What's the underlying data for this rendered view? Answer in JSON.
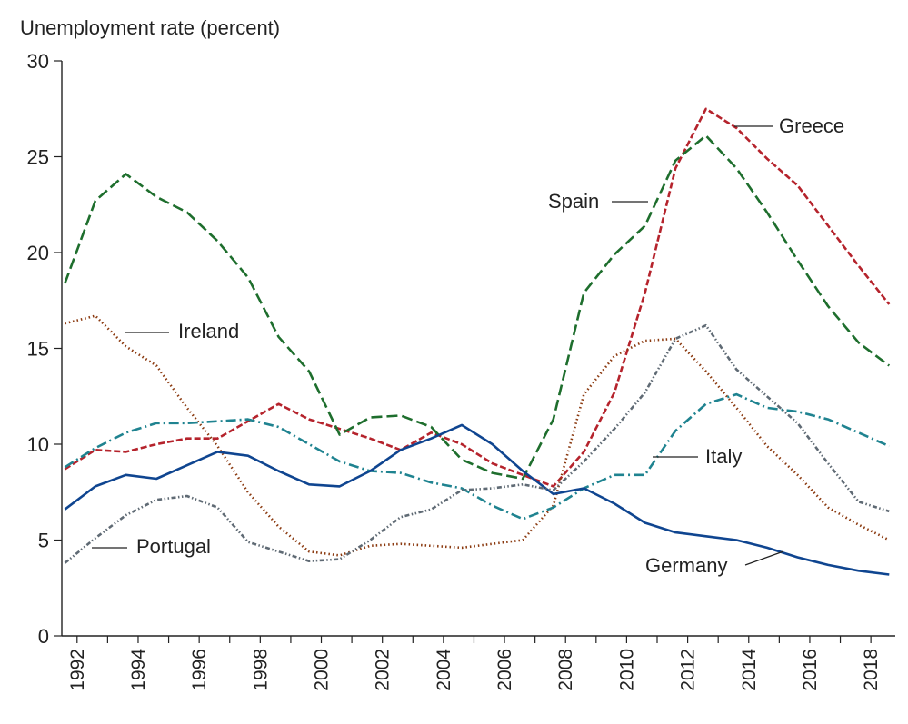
{
  "chart_data": {
    "type": "line",
    "title": "",
    "ylabel": "Unemployment rate (percent)",
    "xlabel": "",
    "ylim": [
      0,
      30
    ],
    "xlim": [
      1991.5,
      2018.8
    ],
    "yticks": [
      0,
      5,
      10,
      15,
      20,
      25,
      30
    ],
    "xticks": [
      1992,
      1994,
      1996,
      1998,
      2000,
      2002,
      2004,
      2006,
      2008,
      2010,
      2012,
      2014,
      2016,
      2018
    ],
    "grid": false,
    "legend": "direct labels",
    "x": [
      1991.6,
      1992.6,
      1993.6,
      1994.6,
      1995.6,
      1996.6,
      1997.6,
      1998.6,
      1999.6,
      2000.6,
      2001.6,
      2002.6,
      2003.6,
      2004.6,
      2005.6,
      2006.6,
      2007.6,
      2008.6,
      2009.6,
      2010.6,
      2011.6,
      2012.6,
      2013.6,
      2014.6,
      2015.6,
      2016.6,
      2017.6,
      2018.6
    ],
    "series": [
      {
        "name": "Greece",
        "color": "#b5232c",
        "dash": "7,3",
        "values": [
          8.7,
          9.7,
          9.6,
          10.0,
          10.3,
          10.3,
          11.2,
          12.1,
          11.3,
          10.8,
          10.3,
          9.7,
          10.6,
          10.0,
          9.0,
          8.4,
          7.8,
          9.6,
          12.7,
          17.9,
          24.4,
          27.5,
          26.5,
          24.9,
          23.5,
          21.4,
          19.3,
          17.3
        ]
      },
      {
        "name": "Spain",
        "color": "#1e6e2d",
        "dash": "12,5",
        "values": [
          18.4,
          22.7,
          24.1,
          22.9,
          22.1,
          20.6,
          18.7,
          15.6,
          13.8,
          10.5,
          11.4,
          11.5,
          10.9,
          9.2,
          8.5,
          8.2,
          11.3,
          17.9,
          19.9,
          21.4,
          24.8,
          26.1,
          24.4,
          22.1,
          19.6,
          17.2,
          15.3,
          14.1
        ]
      },
      {
        "name": "Ireland",
        "color": "#8b3a10",
        "dash": "1.5,3",
        "values": [
          16.3,
          16.7,
          15.1,
          14.1,
          11.9,
          9.9,
          7.5,
          5.7,
          4.4,
          4.2,
          4.7,
          4.8,
          4.7,
          4.6,
          4.8,
          5.0,
          6.8,
          12.6,
          14.6,
          15.4,
          15.5,
          13.8,
          11.9,
          9.9,
          8.4,
          6.7,
          5.8,
          5.0
        ]
      },
      {
        "name": "Italy",
        "color": "#1f8390",
        "dash": "11,4,2,4",
        "values": [
          8.8,
          9.8,
          10.6,
          11.1,
          11.1,
          11.2,
          11.3,
          10.9,
          10.0,
          9.1,
          8.6,
          8.5,
          8.0,
          7.7,
          6.8,
          6.1,
          6.7,
          7.7,
          8.4,
          8.4,
          10.7,
          12.1,
          12.6,
          11.9,
          11.7,
          11.3,
          10.6,
          9.9
        ]
      },
      {
        "name": "Germany",
        "color": "#0f4590",
        "dash": "",
        "values": [
          6.6,
          7.8,
          8.4,
          8.2,
          8.9,
          9.6,
          9.4,
          8.6,
          7.9,
          7.8,
          8.6,
          9.7,
          10.3,
          11.0,
          10.0,
          8.6,
          7.4,
          7.7,
          6.9,
          5.9,
          5.4,
          5.2,
          5.0,
          4.6,
          4.1,
          3.7,
          3.4,
          3.2
        ]
      },
      {
        "name": "Portugal",
        "color": "#5f6a74",
        "dash": "5,2.5,1.5,2.5,1.5,2.5",
        "values": [
          3.8,
          5.1,
          6.3,
          7.1,
          7.3,
          6.7,
          4.9,
          4.4,
          3.9,
          4.0,
          5.0,
          6.2,
          6.6,
          7.6,
          7.7,
          7.9,
          7.6,
          9.1,
          10.8,
          12.7,
          15.5,
          16.2,
          13.9,
          12.5,
          11.1,
          9.0,
          7.0,
          6.5
        ]
      }
    ],
    "annotations": [
      {
        "text": "Greece",
        "series": "Greece"
      },
      {
        "text": "Spain",
        "series": "Spain"
      },
      {
        "text": "Ireland",
        "series": "Ireland"
      },
      {
        "text": "Italy",
        "series": "Italy"
      },
      {
        "text": "Portugal",
        "series": "Portugal"
      },
      {
        "text": "Germany",
        "series": "Germany"
      }
    ]
  }
}
